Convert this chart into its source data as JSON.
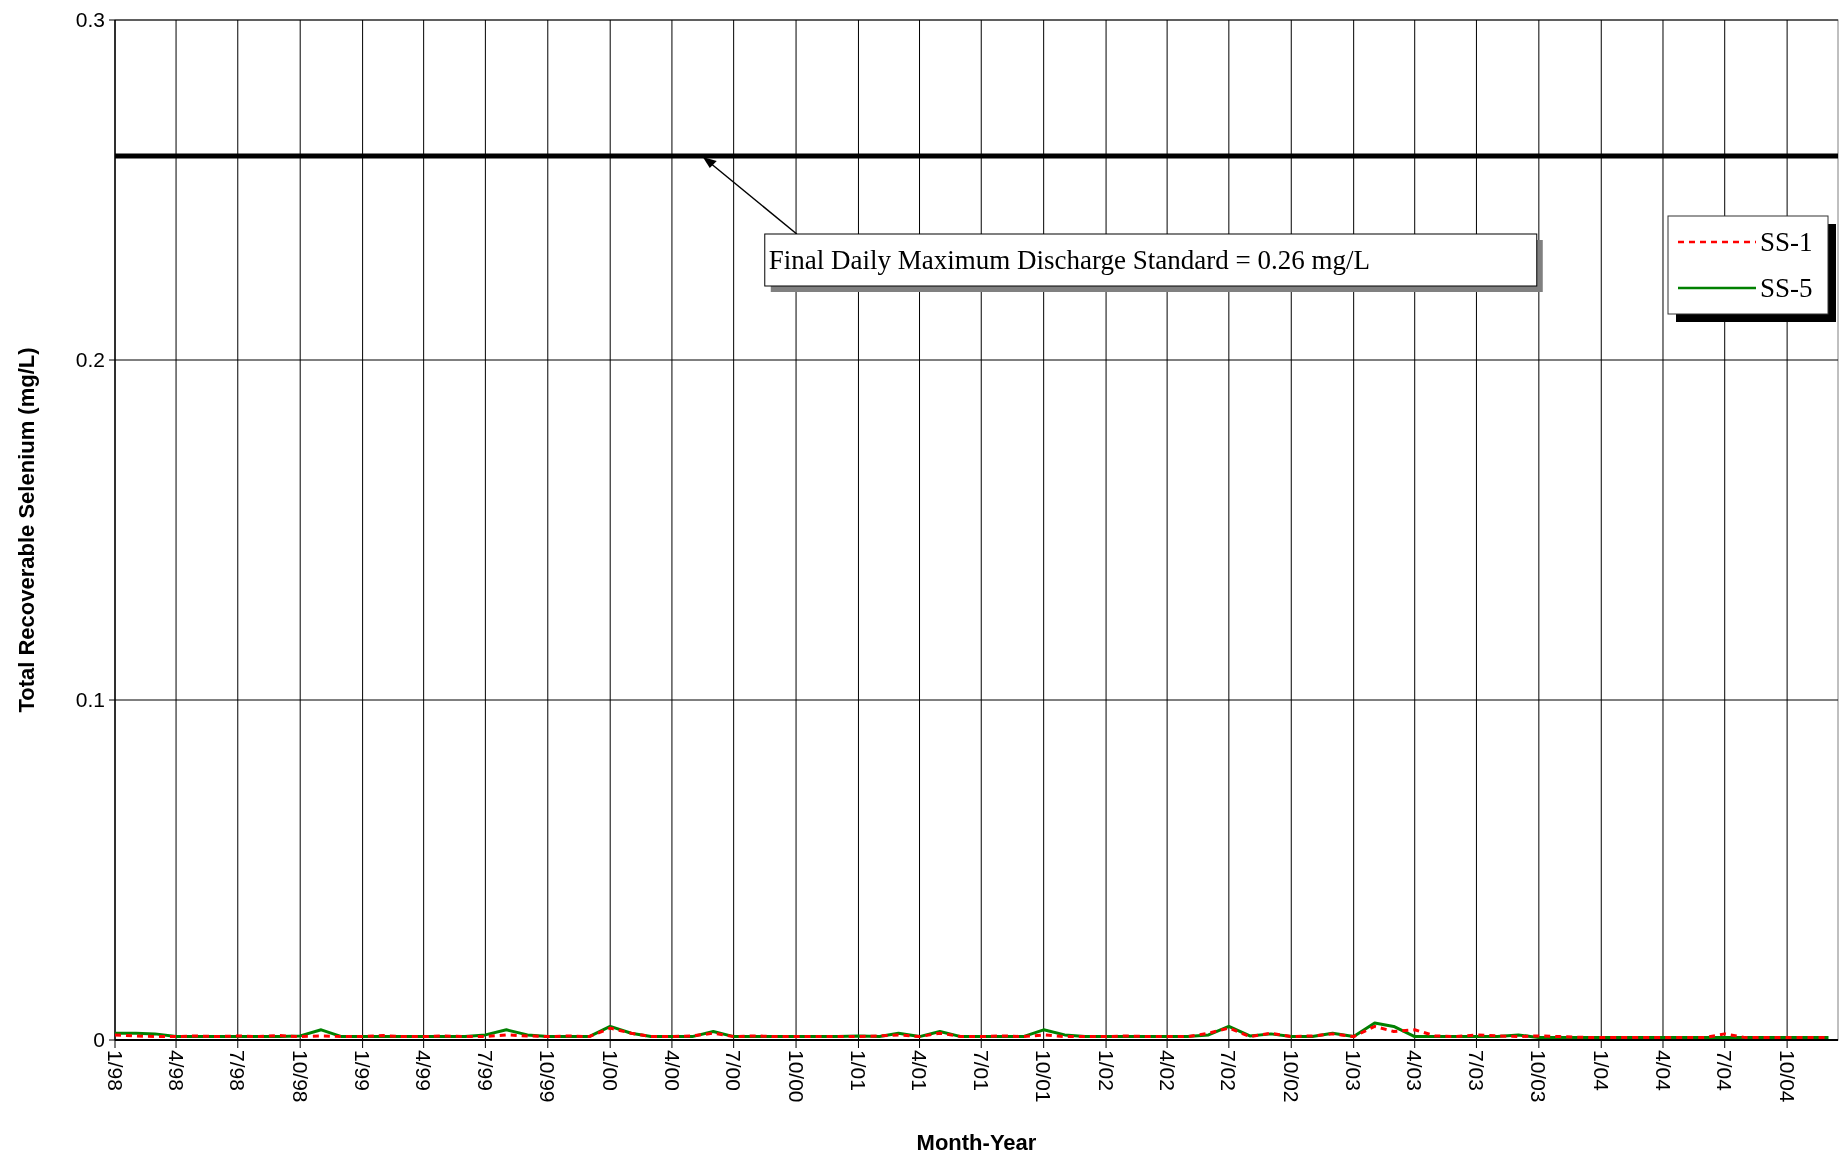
{
  "chart_data": {
    "type": "line",
    "xlabel": "Month-Year",
    "ylabel": "Total Recoverable Selenium (mg/L)",
    "x": [
      "1998-01",
      "1998-02",
      "1998-03",
      "1998-04",
      "1998-05",
      "1998-06",
      "1998-07",
      "1998-08",
      "1998-09",
      "1998-10",
      "1998-11",
      "1998-12",
      "1999-01",
      "1999-02",
      "1999-03",
      "1999-04",
      "1999-05",
      "1999-06",
      "1999-07",
      "1999-08",
      "1999-09",
      "1999-10",
      "1999-11",
      "1999-12",
      "2000-01",
      "2000-02",
      "2000-03",
      "2000-04",
      "2000-05",
      "2000-06",
      "2000-07",
      "2000-08",
      "2000-09",
      "2000-10",
      "2000-11",
      "2000-12",
      "2001-01",
      "2001-02",
      "2001-03",
      "2001-04",
      "2001-05",
      "2001-06",
      "2001-07",
      "2001-08",
      "2001-09",
      "2001-10",
      "2001-11",
      "2001-12",
      "2002-01",
      "2002-02",
      "2002-03",
      "2002-04",
      "2002-05",
      "2002-06",
      "2002-07",
      "2002-08",
      "2002-09",
      "2002-10",
      "2002-11",
      "2002-12",
      "2003-01",
      "2003-02",
      "2003-03",
      "2003-04",
      "2003-05",
      "2003-06",
      "2003-07",
      "2003-08",
      "2003-09",
      "2003-10",
      "2003-11",
      "2003-12",
      "2004-01",
      "2004-02",
      "2004-03",
      "2004-04",
      "2004-05",
      "2004-06",
      "2004-07",
      "2004-08",
      "2004-09",
      "2004-10",
      "2004-11",
      "2004-12"
    ],
    "series": [
      {
        "name": "SS-1",
        "color": "#ff0000",
        "line_style": "dashed",
        "values": [
          0.0015,
          0.0012,
          0.001,
          0.001,
          0.0012,
          0.001,
          0.0012,
          0.001,
          0.0013,
          0.001,
          0.0012,
          0.001,
          0.001,
          0.0013,
          0.001,
          0.001,
          0.0012,
          0.001,
          0.001,
          0.0015,
          0.0012,
          0.001,
          0.0012,
          0.001,
          0.0035,
          0.002,
          0.001,
          0.001,
          0.0012,
          0.002,
          0.001,
          0.0012,
          0.001,
          0.001,
          0.001,
          0.001,
          0.001,
          0.0012,
          0.0015,
          0.001,
          0.002,
          0.001,
          0.001,
          0.0012,
          0.001,
          0.0015,
          0.001,
          0.001,
          0.001,
          0.0012,
          0.001,
          0.001,
          0.001,
          0.002,
          0.0035,
          0.001,
          0.002,
          0.001,
          0.0012,
          0.0018,
          0.001,
          0.004,
          0.0025,
          0.003,
          0.0012,
          0.001,
          0.0015,
          0.0012,
          0.001,
          0.0012,
          0.001,
          0.0008,
          0.0007,
          0.0007,
          0.0007,
          0.0007,
          0.0007,
          0.0007,
          0.0018,
          0.0007,
          0.0007,
          0.0007,
          0.0007,
          0.0007
        ]
      },
      {
        "name": "SS-5",
        "color": "#008000",
        "line_style": "solid",
        "values": [
          0.002,
          0.002,
          0.0018,
          0.001,
          0.001,
          0.001,
          0.001,
          0.001,
          0.001,
          0.0012,
          0.003,
          0.001,
          0.001,
          0.001,
          0.001,
          0.001,
          0.001,
          0.001,
          0.0015,
          0.003,
          0.0015,
          0.001,
          0.001,
          0.001,
          0.004,
          0.002,
          0.001,
          0.001,
          0.001,
          0.0025,
          0.001,
          0.001,
          0.001,
          0.001,
          0.001,
          0.001,
          0.0012,
          0.001,
          0.002,
          0.001,
          0.0025,
          0.001,
          0.001,
          0.001,
          0.001,
          0.003,
          0.0015,
          0.001,
          0.001,
          0.001,
          0.001,
          0.001,
          0.001,
          0.0015,
          0.004,
          0.0012,
          0.0018,
          0.001,
          0.001,
          0.002,
          0.001,
          0.005,
          0.004,
          0.001,
          0.001,
          0.001,
          0.001,
          0.001,
          0.0015,
          0.0007,
          0.0007,
          0.0007,
          0.0007,
          0.0007,
          0.0007,
          0.0007,
          0.0007,
          0.0007,
          0.0007,
          0.0007,
          0.0007,
          0.0007,
          0.0007,
          0.0007
        ]
      }
    ],
    "xlim": [
      "1998-01",
      "2004-12-15"
    ],
    "xticks": [
      {
        "value": "1998-01",
        "label": "1/98"
      },
      {
        "value": "1998-04",
        "label": "4/98"
      },
      {
        "value": "1998-07",
        "label": "7/98"
      },
      {
        "value": "1998-10",
        "label": "10/98"
      },
      {
        "value": "1999-01",
        "label": "1/99"
      },
      {
        "value": "1999-04",
        "label": "4/99"
      },
      {
        "value": "1999-07",
        "label": "7/99"
      },
      {
        "value": "1999-10",
        "label": "10/99"
      },
      {
        "value": "2000-01",
        "label": "1/00"
      },
      {
        "value": "2000-04",
        "label": "4/00"
      },
      {
        "value": "2000-07",
        "label": "7/00"
      },
      {
        "value": "2000-10",
        "label": "10/00"
      },
      {
        "value": "2001-01",
        "label": "1/01"
      },
      {
        "value": "2001-04",
        "label": "4/01"
      },
      {
        "value": "2001-07",
        "label": "7/01"
      },
      {
        "value": "2001-10",
        "label": "10/01"
      },
      {
        "value": "2002-01",
        "label": "1/02"
      },
      {
        "value": "2002-04",
        "label": "4/02"
      },
      {
        "value": "2002-07",
        "label": "7/02"
      },
      {
        "value": "2002-10",
        "label": "10/02"
      },
      {
        "value": "2003-01",
        "label": "1/03"
      },
      {
        "value": "2003-04",
        "label": "4/03"
      },
      {
        "value": "2003-07",
        "label": "7/03"
      },
      {
        "value": "2003-10",
        "label": "10/03"
      },
      {
        "value": "2004-01",
        "label": "1/04"
      },
      {
        "value": "2004-04",
        "label": "4/04"
      },
      {
        "value": "2004-07",
        "label": "7/04"
      },
      {
        "value": "2004-10",
        "label": "10/04"
      }
    ],
    "ylim": [
      0,
      0.3
    ],
    "yticks": [
      0,
      0.1,
      0.2,
      0.3
    ],
    "grid": true,
    "legend": "top right",
    "ref_lines": [
      {
        "axis": "y",
        "value": 0.26,
        "color": "#000000"
      }
    ],
    "annotations": [
      {
        "text": "Final Daily Maximum Discharge Standard = 0.26 mg/L",
        "x": "2000-05-15",
        "y": 0.26
      }
    ]
  }
}
